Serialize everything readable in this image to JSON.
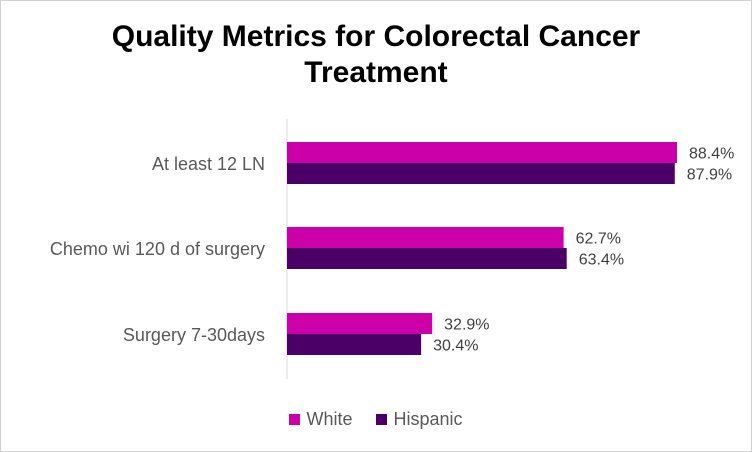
{
  "chart_data": {
    "type": "bar",
    "orientation": "horizontal",
    "title_line1": "Quality Metrics for Colorectal Cancer",
    "title_line2": "Treatment",
    "categories": [
      "At least 12 LN",
      "Chemo wi 120 d of surgery",
      "Surgery 7-30days"
    ],
    "series": [
      {
        "name": "White",
        "color": "#CC00A8",
        "values": [
          88.4,
          62.7,
          32.9
        ]
      },
      {
        "name": "Hispanic",
        "color": "#4B0068",
        "values": [
          87.9,
          63.4,
          30.4
        ]
      }
    ],
    "value_format": "percent_1dp",
    "xlim": [
      0,
      100
    ],
    "grid": false,
    "legend_position": "bottom"
  }
}
